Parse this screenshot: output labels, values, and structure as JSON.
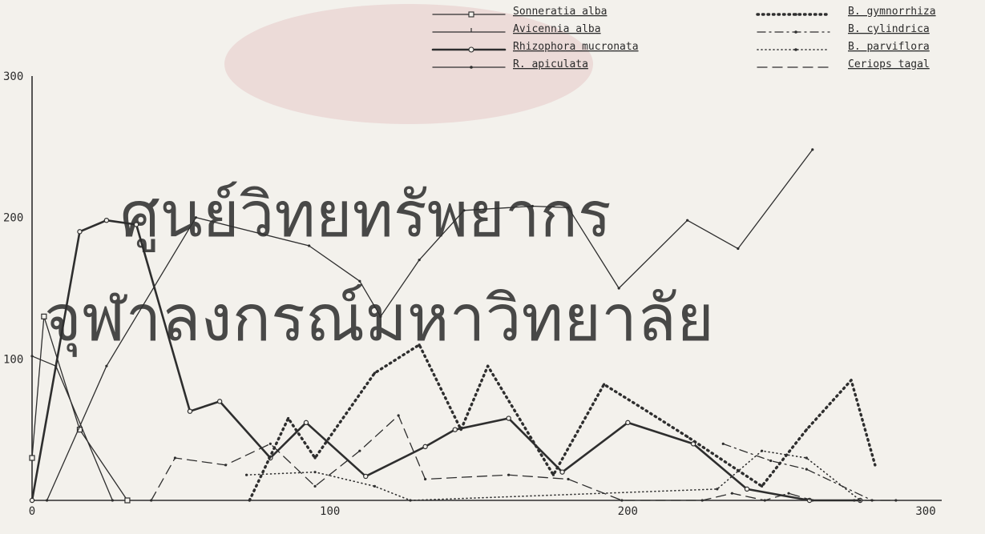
{
  "chart_data": {
    "type": "line",
    "title": "",
    "xlabel": "",
    "ylabel": "",
    "xlim": [
      0,
      300
    ],
    "ylim": [
      0,
      300
    ],
    "x_ticks": [
      {
        "value": 0,
        "label": "0"
      },
      {
        "value": 100,
        "label": "100"
      },
      {
        "value": 200,
        "label": "200"
      },
      {
        "value": 300,
        "label": "300"
      }
    ],
    "y_ticks": [
      {
        "value": 100,
        "label": "100"
      },
      {
        "value": 200,
        "label": "200"
      },
      {
        "value": 300,
        "label": "300"
      }
    ],
    "grid": false,
    "legend_position": "top-right",
    "watermark": [
      "ศูนย์วิทยทรัพยากร",
      "จุฬาลงกรณ์มหาวิทยาลัย"
    ],
    "series": [
      {
        "name": "Sonneratia alba",
        "style": "solid",
        "marker": "square",
        "color": "#2e2e2e",
        "points": [
          [
            0,
            30
          ],
          [
            4,
            130
          ],
          [
            16,
            50
          ],
          [
            32,
            0
          ]
        ]
      },
      {
        "name": "Avicennia alba",
        "style": "solid",
        "marker": "tick",
        "color": "#2e2e2e",
        "points": [
          [
            5,
            0
          ],
          [
            25,
            95
          ],
          [
            55,
            200
          ],
          [
            93,
            180
          ],
          [
            110,
            155
          ],
          [
            117,
            130
          ],
          [
            130,
            170
          ],
          [
            145,
            205
          ],
          [
            168,
            208
          ],
          [
            180,
            207
          ],
          [
            197,
            150
          ],
          [
            220,
            198
          ],
          [
            237,
            178
          ],
          [
            262,
            248
          ]
        ]
      },
      {
        "name": "Rhizophora mucronata",
        "style": "solid-bold",
        "marker": "circle",
        "color": "#2e2e2e",
        "points": [
          [
            0,
            0
          ],
          [
            16,
            190
          ],
          [
            25,
            198
          ],
          [
            35,
            195
          ],
          [
            53,
            63
          ],
          [
            63,
            70
          ],
          [
            80,
            30
          ],
          [
            92,
            55
          ],
          [
            112,
            17
          ],
          [
            132,
            38
          ],
          [
            142,
            50
          ],
          [
            160,
            58
          ],
          [
            178,
            20
          ],
          [
            200,
            55
          ],
          [
            222,
            40
          ],
          [
            240,
            8
          ],
          [
            261,
            0
          ],
          [
            278,
            0
          ]
        ]
      },
      {
        "name": "R. apiculata",
        "style": "solid",
        "marker": "dot",
        "color": "#2e2e2e",
        "points": [
          [
            0,
            102
          ],
          [
            8,
            95
          ],
          [
            27,
            0
          ]
        ]
      },
      {
        "name": "B. gymnorrhiza",
        "style": "dotted-bold",
        "marker": "triangle",
        "color": "#2e2e2e",
        "points": [
          [
            73,
            0
          ],
          [
            86,
            58
          ],
          [
            95,
            30
          ],
          [
            115,
            90
          ],
          [
            130,
            110
          ],
          [
            144,
            50
          ],
          [
            153,
            95
          ],
          [
            175,
            18
          ],
          [
            192,
            82
          ],
          [
            205,
            65
          ],
          [
            220,
            45
          ],
          [
            245,
            10
          ],
          [
            260,
            50
          ],
          [
            275,
            85
          ],
          [
            283,
            25
          ]
        ]
      },
      {
        "name": "B. cylindrica",
        "style": "dash-dot",
        "marker": "dot",
        "color": "#2e2e2e",
        "points": [
          [
            232,
            40
          ],
          [
            248,
            28
          ],
          [
            260,
            22
          ],
          [
            282,
            0
          ]
        ]
      },
      {
        "name": "B. parviflora",
        "style": "dotted",
        "marker": "dot",
        "color": "#2e2e2e",
        "points": [
          [
            72,
            18
          ],
          [
            95,
            20
          ],
          [
            115,
            10
          ],
          [
            127,
            0
          ],
          [
            230,
            8
          ],
          [
            245,
            35
          ],
          [
            260,
            30
          ],
          [
            278,
            0
          ]
        ]
      },
      {
        "name": "Ceriops tagal",
        "style": "dashed",
        "marker": "none",
        "color": "#2e2e2e",
        "points": [
          [
            40,
            0
          ],
          [
            48,
            30
          ],
          [
            65,
            25
          ],
          [
            80,
            40
          ],
          [
            95,
            10
          ],
          [
            110,
            35
          ],
          [
            123,
            60
          ],
          [
            132,
            15
          ],
          [
            160,
            18
          ],
          [
            180,
            15
          ],
          [
            198,
            0
          ],
          [
            225,
            0
          ],
          [
            235,
            5
          ],
          [
            246,
            0
          ],
          [
            254,
            5
          ],
          [
            262,
            0
          ],
          [
            276,
            0
          ],
          [
            290,
            0
          ]
        ]
      }
    ]
  }
}
